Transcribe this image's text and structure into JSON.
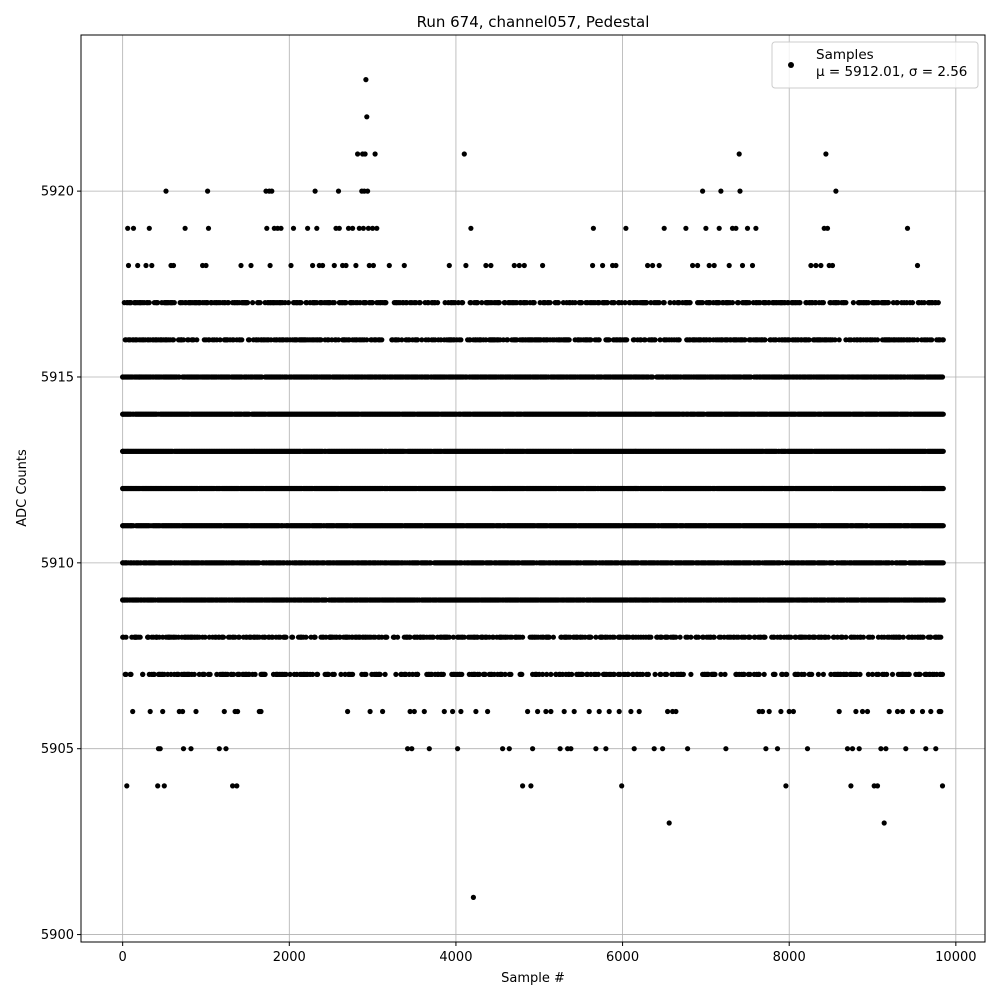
{
  "chart_data": {
    "type": "scatter",
    "title": "Run 674, channel057, Pedestal",
    "xlabel": "Sample #",
    "ylabel": "ADC Counts",
    "xlim": [
      -500,
      10350
    ],
    "ylim": [
      5899.8,
      5924.2
    ],
    "x_ticks": [
      0,
      2000,
      4000,
      6000,
      8000,
      10000
    ],
    "y_ticks": [
      5900,
      5905,
      5910,
      5915,
      5920
    ],
    "grid": true,
    "legend": {
      "placement": "top-right",
      "entries": [
        {
          "label": "Samples",
          "stats": "μ = 5912.01, σ = 2.56"
        }
      ]
    },
    "marker_color": "#000000",
    "series": [
      {
        "name": "Samples",
        "points": [
          [
            0,
            5913
          ],
          [
            20,
            5909
          ],
          [
            40,
            5910
          ],
          [
            50,
            5904
          ],
          [
            60,
            5919
          ],
          [
            70,
            5918
          ],
          [
            80,
            5917
          ],
          [
            90,
            5916
          ],
          [
            100,
            5911
          ],
          [
            120,
            5906
          ],
          [
            130,
            5919
          ],
          [
            150,
            5908
          ],
          [
            160,
            5917
          ],
          [
            180,
            5918
          ],
          [
            200,
            5915
          ],
          [
            240,
            5907
          ],
          [
            260,
            5917
          ],
          [
            280,
            5918
          ],
          [
            300,
            5908
          ],
          [
            320,
            5919
          ],
          [
            330,
            5906
          ],
          [
            350,
            5918
          ],
          [
            370,
            5907
          ],
          [
            410,
            5908
          ],
          [
            420,
            5904
          ],
          [
            430,
            5905
          ],
          [
            450,
            5905
          ],
          [
            470,
            5907
          ],
          [
            480,
            5906
          ],
          [
            500,
            5904
          ],
          [
            520,
            5920
          ],
          [
            550,
            5908
          ],
          [
            580,
            5918
          ],
          [
            600,
            5917
          ],
          [
            610,
            5918
          ],
          [
            620,
            5907
          ],
          [
            640,
            5908
          ],
          [
            680,
            5906
          ],
          [
            700,
            5916
          ],
          [
            720,
            5906
          ],
          [
            730,
            5905
          ],
          [
            750,
            5919
          ],
          [
            790,
            5917
          ],
          [
            820,
            5905
          ],
          [
            830,
            5908
          ],
          [
            860,
            5908
          ],
          [
            880,
            5906
          ],
          [
            920,
            5917
          ],
          [
            960,
            5918
          ],
          [
            1000,
            5918
          ],
          [
            1020,
            5920
          ],
          [
            1030,
            5919
          ],
          [
            1050,
            5907
          ],
          [
            1060,
            5917
          ],
          [
            1120,
            5908
          ],
          [
            1160,
            5905
          ],
          [
            1190,
            5907
          ],
          [
            1220,
            5906
          ],
          [
            1240,
            5905
          ],
          [
            1260,
            5907
          ],
          [
            1290,
            5908
          ],
          [
            1320,
            5904
          ],
          [
            1350,
            5906
          ],
          [
            1370,
            5904
          ],
          [
            1380,
            5906
          ],
          [
            1420,
            5918
          ],
          [
            1450,
            5907
          ],
          [
            1480,
            5917
          ],
          [
            1540,
            5918
          ],
          [
            1580,
            5908
          ],
          [
            1620,
            5908
          ],
          [
            1640,
            5906
          ],
          [
            1660,
            5906
          ],
          [
            1700,
            5907
          ],
          [
            1720,
            5920
          ],
          [
            1730,
            5919
          ],
          [
            1740,
            5917
          ],
          [
            1760,
            5920
          ],
          [
            1770,
            5918
          ],
          [
            1790,
            5920
          ],
          [
            1820,
            5919
          ],
          [
            1860,
            5919
          ],
          [
            1900,
            5919
          ],
          [
            1960,
            5908
          ],
          [
            2020,
            5918
          ],
          [
            2050,
            5919
          ],
          [
            2100,
            5917
          ],
          [
            2150,
            5907
          ],
          [
            2200,
            5907
          ],
          [
            2220,
            5919
          ],
          [
            2280,
            5918
          ],
          [
            2300,
            5908
          ],
          [
            2310,
            5920
          ],
          [
            2330,
            5919
          ],
          [
            2360,
            5918
          ],
          [
            2400,
            5918
          ],
          [
            2430,
            5907
          ],
          [
            2450,
            5907
          ],
          [
            2490,
            5908
          ],
          [
            2540,
            5918
          ],
          [
            2560,
            5919
          ],
          [
            2590,
            5920
          ],
          [
            2600,
            5919
          ],
          [
            2640,
            5918
          ],
          [
            2680,
            5918
          ],
          [
            2700,
            5906
          ],
          [
            2710,
            5919
          ],
          [
            2720,
            5907
          ],
          [
            2760,
            5919
          ],
          [
            2800,
            5918
          ],
          [
            2820,
            5921
          ],
          [
            2840,
            5919
          ],
          [
            2870,
            5920
          ],
          [
            2880,
            5921
          ],
          [
            2890,
            5919
          ],
          [
            2900,
            5920
          ],
          [
            2910,
            5921
          ],
          [
            2920,
            5923
          ],
          [
            2930,
            5922
          ],
          [
            2940,
            5920
          ],
          [
            2950,
            5919
          ],
          [
            2960,
            5918
          ],
          [
            2970,
            5906
          ],
          [
            3000,
            5919
          ],
          [
            3010,
            5918
          ],
          [
            3030,
            5921
          ],
          [
            3050,
            5919
          ],
          [
            3080,
            5907
          ],
          [
            3120,
            5906
          ],
          [
            3150,
            5907
          ],
          [
            3200,
            5918
          ],
          [
            3260,
            5908
          ],
          [
            3300,
            5908
          ],
          [
            3340,
            5907
          ],
          [
            3380,
            5918
          ],
          [
            3420,
            5905
          ],
          [
            3450,
            5906
          ],
          [
            3470,
            5905
          ],
          [
            3500,
            5906
          ],
          [
            3540,
            5907
          ],
          [
            3570,
            5908
          ],
          [
            3620,
            5906
          ],
          [
            3680,
            5905
          ],
          [
            3700,
            5907
          ],
          [
            3780,
            5908
          ],
          [
            3860,
            5906
          ],
          [
            3920,
            5918
          ],
          [
            3960,
            5906
          ],
          [
            4000,
            5907
          ],
          [
            4020,
            5905
          ],
          [
            4060,
            5906
          ],
          [
            4080,
            5908
          ],
          [
            4100,
            5921
          ],
          [
            4120,
            5918
          ],
          [
            4180,
            5919
          ],
          [
            4210,
            5901
          ],
          [
            4240,
            5906
          ],
          [
            4280,
            5907
          ],
          [
            4320,
            5908
          ],
          [
            4360,
            5918
          ],
          [
            4380,
            5906
          ],
          [
            4420,
            5918
          ],
          [
            4500,
            5907
          ],
          [
            4560,
            5905
          ],
          [
            4600,
            5908
          ],
          [
            4640,
            5905
          ],
          [
            4700,
            5918
          ],
          [
            4760,
            5918
          ],
          [
            4800,
            5904
          ],
          [
            4820,
            5918
          ],
          [
            4860,
            5906
          ],
          [
            4900,
            5904
          ],
          [
            4920,
            5905
          ],
          [
            4980,
            5906
          ],
          [
            5040,
            5918
          ],
          [
            5080,
            5906
          ],
          [
            5140,
            5906
          ],
          [
            5200,
            5907
          ],
          [
            5250,
            5905
          ],
          [
            5300,
            5906
          ],
          [
            5340,
            5905
          ],
          [
            5380,
            5905
          ],
          [
            5420,
            5906
          ],
          [
            5480,
            5907
          ],
          [
            5520,
            5908
          ],
          [
            5600,
            5906
          ],
          [
            5640,
            5918
          ],
          [
            5650,
            5919
          ],
          [
            5680,
            5905
          ],
          [
            5720,
            5906
          ],
          [
            5760,
            5918
          ],
          [
            5800,
            5905
          ],
          [
            5840,
            5906
          ],
          [
            5880,
            5918
          ],
          [
            5920,
            5918
          ],
          [
            5960,
            5906
          ],
          [
            5990,
            5904
          ],
          [
            6040,
            5919
          ],
          [
            6100,
            5906
          ],
          [
            6140,
            5905
          ],
          [
            6200,
            5906
          ],
          [
            6240,
            5907
          ],
          [
            6300,
            5918
          ],
          [
            6360,
            5918
          ],
          [
            6380,
            5905
          ],
          [
            6440,
            5918
          ],
          [
            6480,
            5905
          ],
          [
            6500,
            5919
          ],
          [
            6540,
            5906
          ],
          [
            6560,
            5903
          ],
          [
            6600,
            5906
          ],
          [
            6640,
            5906
          ],
          [
            6700,
            5907
          ],
          [
            6760,
            5919
          ],
          [
            6780,
            5905
          ],
          [
            6840,
            5918
          ],
          [
            6900,
            5918
          ],
          [
            6960,
            5920
          ],
          [
            7000,
            5919
          ],
          [
            7040,
            5918
          ],
          [
            7100,
            5918
          ],
          [
            7160,
            5919
          ],
          [
            7180,
            5920
          ],
          [
            7240,
            5905
          ],
          [
            7280,
            5918
          ],
          [
            7320,
            5919
          ],
          [
            7360,
            5919
          ],
          [
            7400,
            5921
          ],
          [
            7410,
            5920
          ],
          [
            7440,
            5918
          ],
          [
            7500,
            5919
          ],
          [
            7560,
            5918
          ],
          [
            7600,
            5919
          ],
          [
            7640,
            5906
          ],
          [
            7680,
            5906
          ],
          [
            7720,
            5905
          ],
          [
            7760,
            5906
          ],
          [
            7820,
            5907
          ],
          [
            7860,
            5905
          ],
          [
            7900,
            5906
          ],
          [
            7960,
            5904
          ],
          [
            8000,
            5906
          ],
          [
            8050,
            5906
          ],
          [
            8080,
            5907
          ],
          [
            8140,
            5908
          ],
          [
            8220,
            5905
          ],
          [
            8260,
            5918
          ],
          [
            8320,
            5918
          ],
          [
            8380,
            5918
          ],
          [
            8420,
            5919
          ],
          [
            8440,
            5921
          ],
          [
            8460,
            5919
          ],
          [
            8480,
            5918
          ],
          [
            8520,
            5918
          ],
          [
            8560,
            5920
          ],
          [
            8600,
            5906
          ],
          [
            8660,
            5907
          ],
          [
            8700,
            5905
          ],
          [
            8740,
            5904
          ],
          [
            8760,
            5905
          ],
          [
            8800,
            5906
          ],
          [
            8840,
            5905
          ],
          [
            8880,
            5906
          ],
          [
            8940,
            5906
          ],
          [
            9000,
            5907
          ],
          [
            9020,
            5904
          ],
          [
            9060,
            5904
          ],
          [
            9100,
            5905
          ],
          [
            9140,
            5903
          ],
          [
            9160,
            5905
          ],
          [
            9200,
            5906
          ],
          [
            9240,
            5907
          ],
          [
            9300,
            5906
          ],
          [
            9360,
            5906
          ],
          [
            9400,
            5905
          ],
          [
            9420,
            5919
          ],
          [
            9480,
            5906
          ],
          [
            9540,
            5918
          ],
          [
            9600,
            5906
          ],
          [
            9640,
            5905
          ],
          [
            9700,
            5906
          ],
          [
            9760,
            5905
          ],
          [
            9800,
            5906
          ],
          [
            9820,
            5906
          ],
          [
            9840,
            5904
          ],
          [
            0,
            5915
          ],
          [
            0,
            5914
          ],
          [
            0,
            5913
          ],
          [
            0,
            5912
          ],
          [
            0,
            5911
          ],
          [
            0,
            5910
          ],
          [
            0,
            5909
          ]
        ],
        "dense_rows": [
          {
            "y": 5909,
            "x_range": [
              0,
              9850
            ]
          },
          {
            "y": 5910,
            "x_range": [
              0,
              9850
            ]
          },
          {
            "y": 5911,
            "x_range": [
              0,
              9850
            ]
          },
          {
            "y": 5912,
            "x_range": [
              0,
              9850
            ]
          },
          {
            "y": 5913,
            "x_range": [
              0,
              9850
            ]
          },
          {
            "y": 5914,
            "x_range": [
              0,
              9850
            ]
          },
          {
            "y": 5915,
            "x_range": [
              0,
              9850
            ]
          },
          {
            "y": 5916,
            "x_range": [
              0,
              9850
            ]
          },
          {
            "y": 5917,
            "x_range": [
              0,
              9850
            ]
          },
          {
            "y": 5908,
            "x_range": [
              0,
              9850
            ]
          },
          {
            "y": 5907,
            "x_range": [
              0,
              9850
            ]
          }
        ]
      }
    ]
  }
}
